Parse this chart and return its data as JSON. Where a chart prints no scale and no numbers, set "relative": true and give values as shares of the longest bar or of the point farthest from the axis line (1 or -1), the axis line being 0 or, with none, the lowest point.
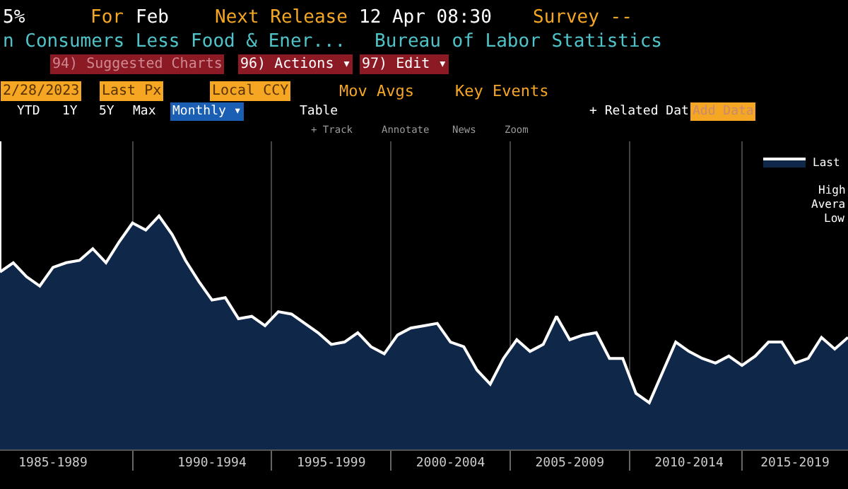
{
  "chart_data": {
    "type": "area",
    "relative": true,
    "grid": "x",
    "legend": "top right",
    "categories": [
      null,
      null,
      null,
      null,
      "1985-1989",
      null,
      null,
      null,
      null,
      null,
      null,
      null,
      null,
      null,
      null,
      null,
      "1990-1994",
      null,
      null,
      null,
      null,
      null,
      null,
      null,
      null,
      "1995-1999",
      null,
      null,
      null,
      null,
      null,
      null,
      null,
      null,
      "2000-2004",
      null,
      null,
      null,
      null,
      null,
      null,
      null,
      null,
      "2005-2009",
      null,
      null,
      null,
      null,
      null,
      null,
      null,
      null,
      "2010-2014",
      null,
      null,
      null,
      null,
      null,
      null,
      null,
      "2015-2019",
      null,
      null,
      null,
      null
    ],
    "annotations": [
      "5%",
      "For",
      "Feb",
      "Next Release",
      "12 Apr 08:30",
      "Survey --",
      "n Consumers Less Food & Ener...",
      "Bureau of Labor Statistics",
      "94) Suggested Charts",
      "96) Actions ▾",
      "97) Edit ▾",
      "2/28/2023",
      "Last Px",
      "Local CCY",
      "Mov Avgs",
      "Key Events",
      "YTD",
      "1Y",
      "5Y",
      "Max",
      "Monthly ▾",
      "Table",
      "+ Related Dat",
      "Add Data",
      "+ Track",
      "Annotate",
      "News",
      "Zoom",
      "High",
      "Avera",
      "Low"
    ],
    "series": [
      {
        "name": "Last",
        "color": "#ffffff",
        "values": [
          0.76,
          0.8,
          0.74,
          0.7,
          0.78,
          0.8,
          0.81,
          0.86,
          0.8,
          0.89,
          0.97,
          0.94,
          1.0,
          0.92,
          0.81,
          0.72,
          0.64,
          0.65,
          0.56,
          0.57,
          0.53,
          0.59,
          0.58,
          0.54,
          0.5,
          0.45,
          0.46,
          0.5,
          0.44,
          0.41,
          0.49,
          0.52,
          0.53,
          0.54,
          0.46,
          0.44,
          0.34,
          0.28,
          0.39,
          0.47,
          0.42,
          0.45,
          0.57,
          0.47,
          0.49,
          0.5,
          0.39,
          0.39,
          0.24,
          0.2,
          0.33,
          0.46,
          0.42,
          0.39,
          0.37,
          0.4,
          0.36,
          0.4,
          0.46,
          0.46,
          0.37,
          0.39,
          0.48,
          0.43,
          0.48
        ]
      }
    ]
  }
}
